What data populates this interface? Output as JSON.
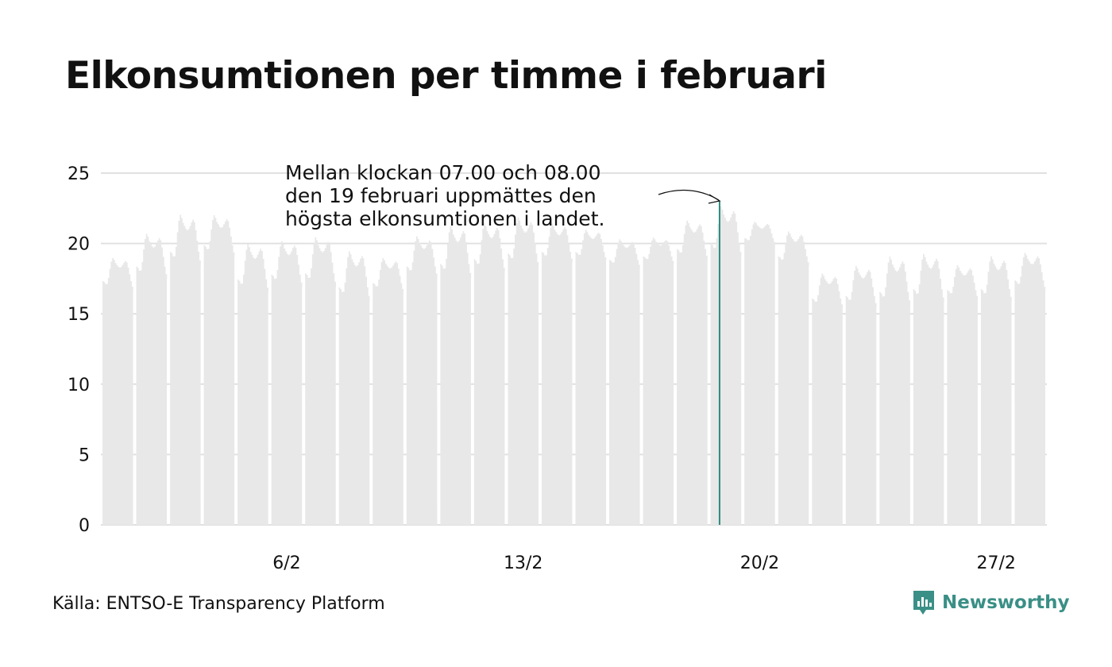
{
  "title": "Elkonsumtionen per timme i februari",
  "source": "Källa: ENTSO-E Transparency Platform",
  "brand": {
    "name": "Newsworthy",
    "icon": "newsworthy-logo-icon",
    "color": "#3a8f86"
  },
  "colors": {
    "bars": "#e8e8e8",
    "highlight": "#2e8b7e",
    "grid": "#e0e0e0",
    "text": "#111111"
  },
  "annotation": {
    "lines": [
      "Mellan klockan 07.00 och 08.00",
      "den 19 februari uppmättes den",
      "högsta elkonsumtionen i landet."
    ]
  },
  "chart_data": {
    "type": "bar",
    "granularity": "hourly",
    "x_start": "2021-02-01 00:00",
    "x_end": "2021-02-28 23:00",
    "ylim": [
      0,
      25
    ],
    "y_ticks": [
      "0",
      "5",
      "10",
      "15",
      "20",
      "25"
    ],
    "x_ticks": [
      {
        "label": "6/2",
        "date": "2021-02-06"
      },
      {
        "label": "13/2",
        "date": "2021-02-13"
      },
      {
        "label": "20/2",
        "date": "2021-02-20"
      },
      {
        "label": "27/2",
        "date": "2021-02-27"
      }
    ],
    "grid": true,
    "highlight": {
      "date": "2021-02-19",
      "hour": "07.00-08.00",
      "value": 23.0
    },
    "daily": [
      {
        "date": "2021-02-01",
        "night": 16.5,
        "peak": 19.2
      },
      {
        "date": "2021-02-02",
        "night": 17.2,
        "peak": 21.0
      },
      {
        "date": "2021-02-03",
        "night": 18.1,
        "peak": 22.4
      },
      {
        "date": "2021-02-04",
        "night": 18.8,
        "peak": 22.3
      },
      {
        "date": "2021-02-05",
        "night": 16.2,
        "peak": 20.3
      },
      {
        "date": "2021-02-06",
        "night": 16.6,
        "peak": 20.5
      },
      {
        "date": "2021-02-07",
        "night": 16.6,
        "peak": 20.8
      },
      {
        "date": "2021-02-08",
        "night": 15.6,
        "peak": 19.8
      },
      {
        "date": "2021-02-09",
        "night": 16.3,
        "peak": 19.2
      },
      {
        "date": "2021-02-10",
        "night": 17.3,
        "peak": 20.8
      },
      {
        "date": "2021-02-11",
        "night": 17.2,
        "peak": 21.6
      },
      {
        "date": "2021-02-12",
        "night": 17.6,
        "peak": 21.8
      },
      {
        "date": "2021-02-13",
        "night": 18.0,
        "peak": 22.2
      },
      {
        "date": "2021-02-14",
        "night": 18.4,
        "peak": 21.7
      },
      {
        "date": "2021-02-15",
        "night": 18.6,
        "peak": 21.2
      },
      {
        "date": "2021-02-16",
        "night": 18.1,
        "peak": 20.5
      },
      {
        "date": "2021-02-17",
        "night": 18.4,
        "peak": 20.6
      },
      {
        "date": "2021-02-18",
        "night": 18.6,
        "peak": 21.9
      },
      {
        "date": "2021-02-19",
        "night": 18.7,
        "peak": 23.0
      },
      {
        "date": "2021-02-20",
        "night": 19.8,
        "peak": 21.7
      },
      {
        "date": "2021-02-21",
        "night": 18.2,
        "peak": 21.1
      },
      {
        "date": "2021-02-22",
        "night": 15.2,
        "peak": 18.1
      },
      {
        "date": "2021-02-23",
        "night": 15.2,
        "peak": 18.7
      },
      {
        "date": "2021-02-24",
        "night": 15.3,
        "peak": 19.4
      },
      {
        "date": "2021-02-25",
        "night": 15.5,
        "peak": 19.6
      },
      {
        "date": "2021-02-26",
        "night": 15.8,
        "peak": 18.7
      },
      {
        "date": "2021-02-27",
        "night": 15.6,
        "peak": 19.4
      },
      {
        "date": "2021-02-28",
        "night": 16.4,
        "peak": 19.6
      }
    ]
  }
}
